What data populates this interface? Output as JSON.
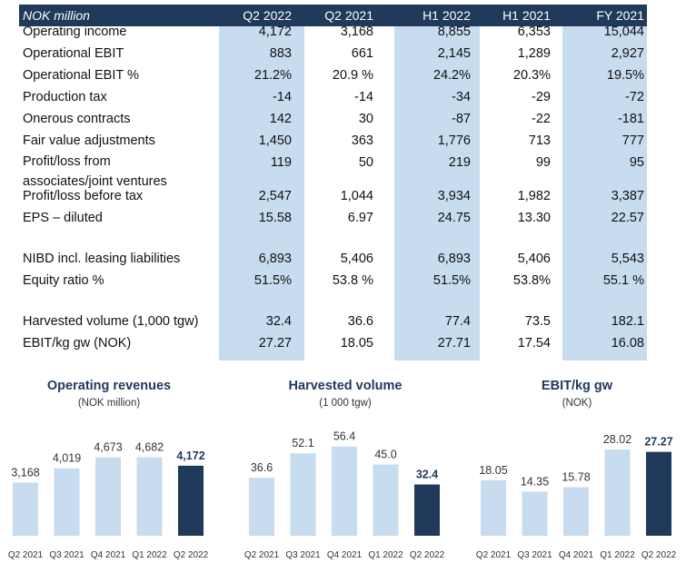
{
  "table": {
    "unit_label": "NOK million",
    "columns": [
      "Q2 2022",
      "Q2 2021",
      "H1 2022",
      "H1 2021",
      "FY 2021"
    ],
    "rows": [
      {
        "label": "Operating income",
        "values": [
          "4,172",
          "3,168",
          "8,855",
          "6,353",
          "15,044"
        ]
      },
      {
        "label": "Operational EBIT",
        "values": [
          "883",
          "661",
          "2,145",
          "1,289",
          "2,927"
        ]
      },
      {
        "label": "Operational EBIT %",
        "values": [
          "21.2%",
          "20.9 %",
          "24.2%",
          "20.3%",
          "19.5%"
        ]
      },
      {
        "label": "Production tax",
        "values": [
          "-14",
          "-14",
          "-34",
          "-29",
          "-72"
        ]
      },
      {
        "label": "Onerous contracts",
        "values": [
          "142",
          "30",
          "-87",
          "-22",
          "-181"
        ]
      },
      {
        "label": "Fair value adjustments",
        "values": [
          "1,450",
          "363",
          "1,776",
          "713",
          "777"
        ]
      },
      {
        "label": "Profit/loss from associates/joint ventures",
        "values": [
          "119",
          "50",
          "219",
          "99",
          "95"
        ]
      },
      {
        "label": "Profit/loss before tax",
        "values": [
          "2,547",
          "1,044",
          "3,934",
          "1,982",
          "3,387"
        ]
      },
      {
        "label": "EPS – diluted",
        "values": [
          "15.58",
          "6.97",
          "24.75",
          "13.30",
          "22.57"
        ]
      },
      {
        "label": "NIBD incl. leasing liabilities",
        "values": [
          "6,893",
          "5,406",
          "6,893",
          "5,406",
          "5,543"
        ]
      },
      {
        "label": "Equity ratio %",
        "values": [
          "51.5%",
          "53.8 %",
          "51.5%",
          "53.8%",
          "55.1 %"
        ]
      },
      {
        "label": "Harvested volume (1,000 tgw)",
        "values": [
          "32.4",
          "36.6",
          "77.4",
          "73.5",
          "182.1"
        ]
      },
      {
        "label": "EBIT/kg gw (NOK)",
        "values": [
          "27.27",
          "18.05",
          "27.71",
          "17.54",
          "16.08"
        ]
      }
    ]
  },
  "colors": {
    "header": "#1f3a5a",
    "highlight": "#c7dcef",
    "bar": "#c7dcef",
    "bar_current": "#1f3a5a"
  },
  "chart_data": [
    {
      "type": "bar",
      "title": "Operating revenues",
      "subtitle": "(NOK million)",
      "categories": [
        "Q2 2021",
        "Q3 2021",
        "Q4 2021",
        "Q1 2022",
        "Q2 2022"
      ],
      "values": [
        3168,
        4019,
        4673,
        4682,
        4172
      ],
      "labels": [
        "3,168",
        "4,019",
        "4,673",
        "4,682",
        "4,172"
      ],
      "ylim": [
        0,
        6600
      ]
    },
    {
      "type": "bar",
      "title": "Harvested volume",
      "subtitle": "(1 000 tgw)",
      "categories": [
        "Q2 2021",
        "Q3 2021",
        "Q4 2021",
        "Q1 2022",
        "Q2 2022"
      ],
      "values": [
        36.6,
        52.1,
        56.4,
        45.0,
        32.4
      ],
      "labels": [
        "36.6",
        "52.1",
        "56.4",
        "45.0",
        "32.4"
      ],
      "ylim": [
        0,
        70
      ]
    },
    {
      "type": "bar",
      "title": "EBIT/kg gw",
      "subtitle": "(NOK)",
      "categories": [
        "Q2 2021",
        "Q3 2021",
        "Q4 2021",
        "Q1 2022",
        "Q2 2022"
      ],
      "values": [
        18.05,
        14.35,
        15.78,
        28.02,
        27.27
      ],
      "labels": [
        "18.05",
        "14.35",
        "15.78",
        "28.02",
        "27.27"
      ],
      "ylim": [
        0,
        36
      ]
    }
  ]
}
